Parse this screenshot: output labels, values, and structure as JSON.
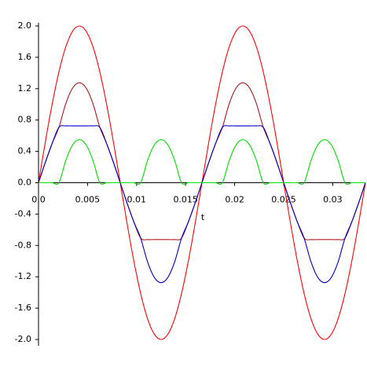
{
  "chart_data": {
    "type": "line",
    "x_label": "t",
    "x": [
      0,
      0.000694,
      0.001389,
      0.002083,
      0.002778,
      0.003472,
      0.004167,
      0.004861,
      0.005556,
      0.00625,
      0.006944,
      0.007639,
      0.008333,
      0.009028,
      0.009722,
      0.010417,
      0.011111,
      0.011806,
      0.0125,
      0.013194,
      0.013889,
      0.014583,
      0.015278,
      0.015972,
      0.016667,
      0.017361,
      0.018056,
      0.01875,
      0.019444,
      0.020139,
      0.020833,
      0.021528,
      0.022222,
      0.022917,
      0.023611,
      0.024306,
      0.025,
      0.025694,
      0.026389,
      0.027083,
      0.027778,
      0.028472,
      0.029167,
      0.029861,
      0.030556,
      0.03125,
      0.031944,
      0.032639,
      0.033333
    ],
    "series": [
      {
        "color": "#ff0000",
        "values": [
          0,
          0.518,
          1,
          1.414,
          1.732,
          1.932,
          2,
          1.932,
          1.732,
          1.414,
          1,
          0.518,
          0,
          -0.518,
          -1,
          -1.414,
          -1.732,
          -1.932,
          -2,
          -1.932,
          -1.732,
          -1.414,
          -1,
          -0.518,
          0,
          0.518,
          1,
          1.414,
          1.732,
          1.932,
          2,
          1.932,
          1.732,
          1.414,
          1,
          0.518,
          0,
          -0.518,
          -1,
          -1.414,
          -1.732,
          -1.932,
          -2,
          -1.932,
          -1.732,
          -1.414,
          -1,
          -0.518,
          0
        ]
      },
      {
        "color": "#b01818",
        "values": [
          0,
          0.259,
          0.5,
          0.707,
          1.007,
          1.207,
          1.275,
          1.207,
          1.007,
          0.707,
          0.5,
          0.259,
          0,
          -0.259,
          -0.5,
          -0.707,
          -0.725,
          -0.725,
          -0.725,
          -0.725,
          -0.725,
          -0.707,
          -0.5,
          -0.259,
          0,
          0.259,
          0.5,
          0.707,
          1.007,
          1.207,
          1.275,
          1.207,
          1.007,
          0.707,
          0.5,
          0.259,
          0,
          -0.259,
          -0.5,
          -0.707,
          -0.725,
          -0.725,
          -0.725,
          -0.725,
          -0.725,
          -0.707,
          -0.5,
          -0.259,
          0
        ]
      },
      {
        "color": "#0000c8",
        "values": [
          0,
          0.259,
          0.5,
          0.707,
          0.725,
          0.725,
          0.725,
          0.725,
          0.725,
          0.707,
          0.5,
          0.259,
          0,
          -0.259,
          -0.5,
          -0.707,
          -1.007,
          -1.207,
          -1.275,
          -1.207,
          -1.007,
          -0.707,
          -0.5,
          -0.259,
          0,
          0.259,
          0.5,
          0.707,
          0.725,
          0.725,
          0.725,
          0.725,
          0.725,
          0.707,
          0.5,
          0.259,
          0,
          -0.259,
          -0.5,
          -0.707,
          -1.007,
          -1.207,
          -1.275,
          -1.207,
          -1.007,
          -0.707,
          -0.5,
          -0.259,
          0
        ]
      },
      {
        "color": "#00e000",
        "values": [
          0,
          0,
          0,
          0,
          0.282,
          0.482,
          0.55,
          0.482,
          0.282,
          0,
          0,
          0,
          0,
          0,
          0,
          0,
          0.282,
          0.482,
          0.55,
          0.482,
          0.282,
          0,
          0,
          0,
          0,
          0,
          0,
          0,
          0.282,
          0.482,
          0.55,
          0.482,
          0.282,
          0,
          0,
          0,
          0,
          0,
          0,
          0,
          0.282,
          0.482,
          0.55,
          0.482,
          0.282,
          0,
          0,
          0,
          0
        ]
      }
    ],
    "xlim": [
      0,
      0.033333
    ],
    "ylim": [
      -2,
      2
    ],
    "xticks": [
      {
        "value": 0,
        "label": "0.0"
      },
      0.005,
      0.01,
      0.015,
      0.02,
      0.025,
      0.03
    ],
    "yticks": [
      {
        "value": -2,
        "label": "-2.0"
      },
      -1.6,
      -1.2,
      -0.8,
      -0.4,
      {
        "value": 0,
        "label": "0.0"
      },
      0.4,
      0.8,
      1.2,
      1.6,
      {
        "value": 2,
        "label": "2.0"
      }
    ]
  }
}
